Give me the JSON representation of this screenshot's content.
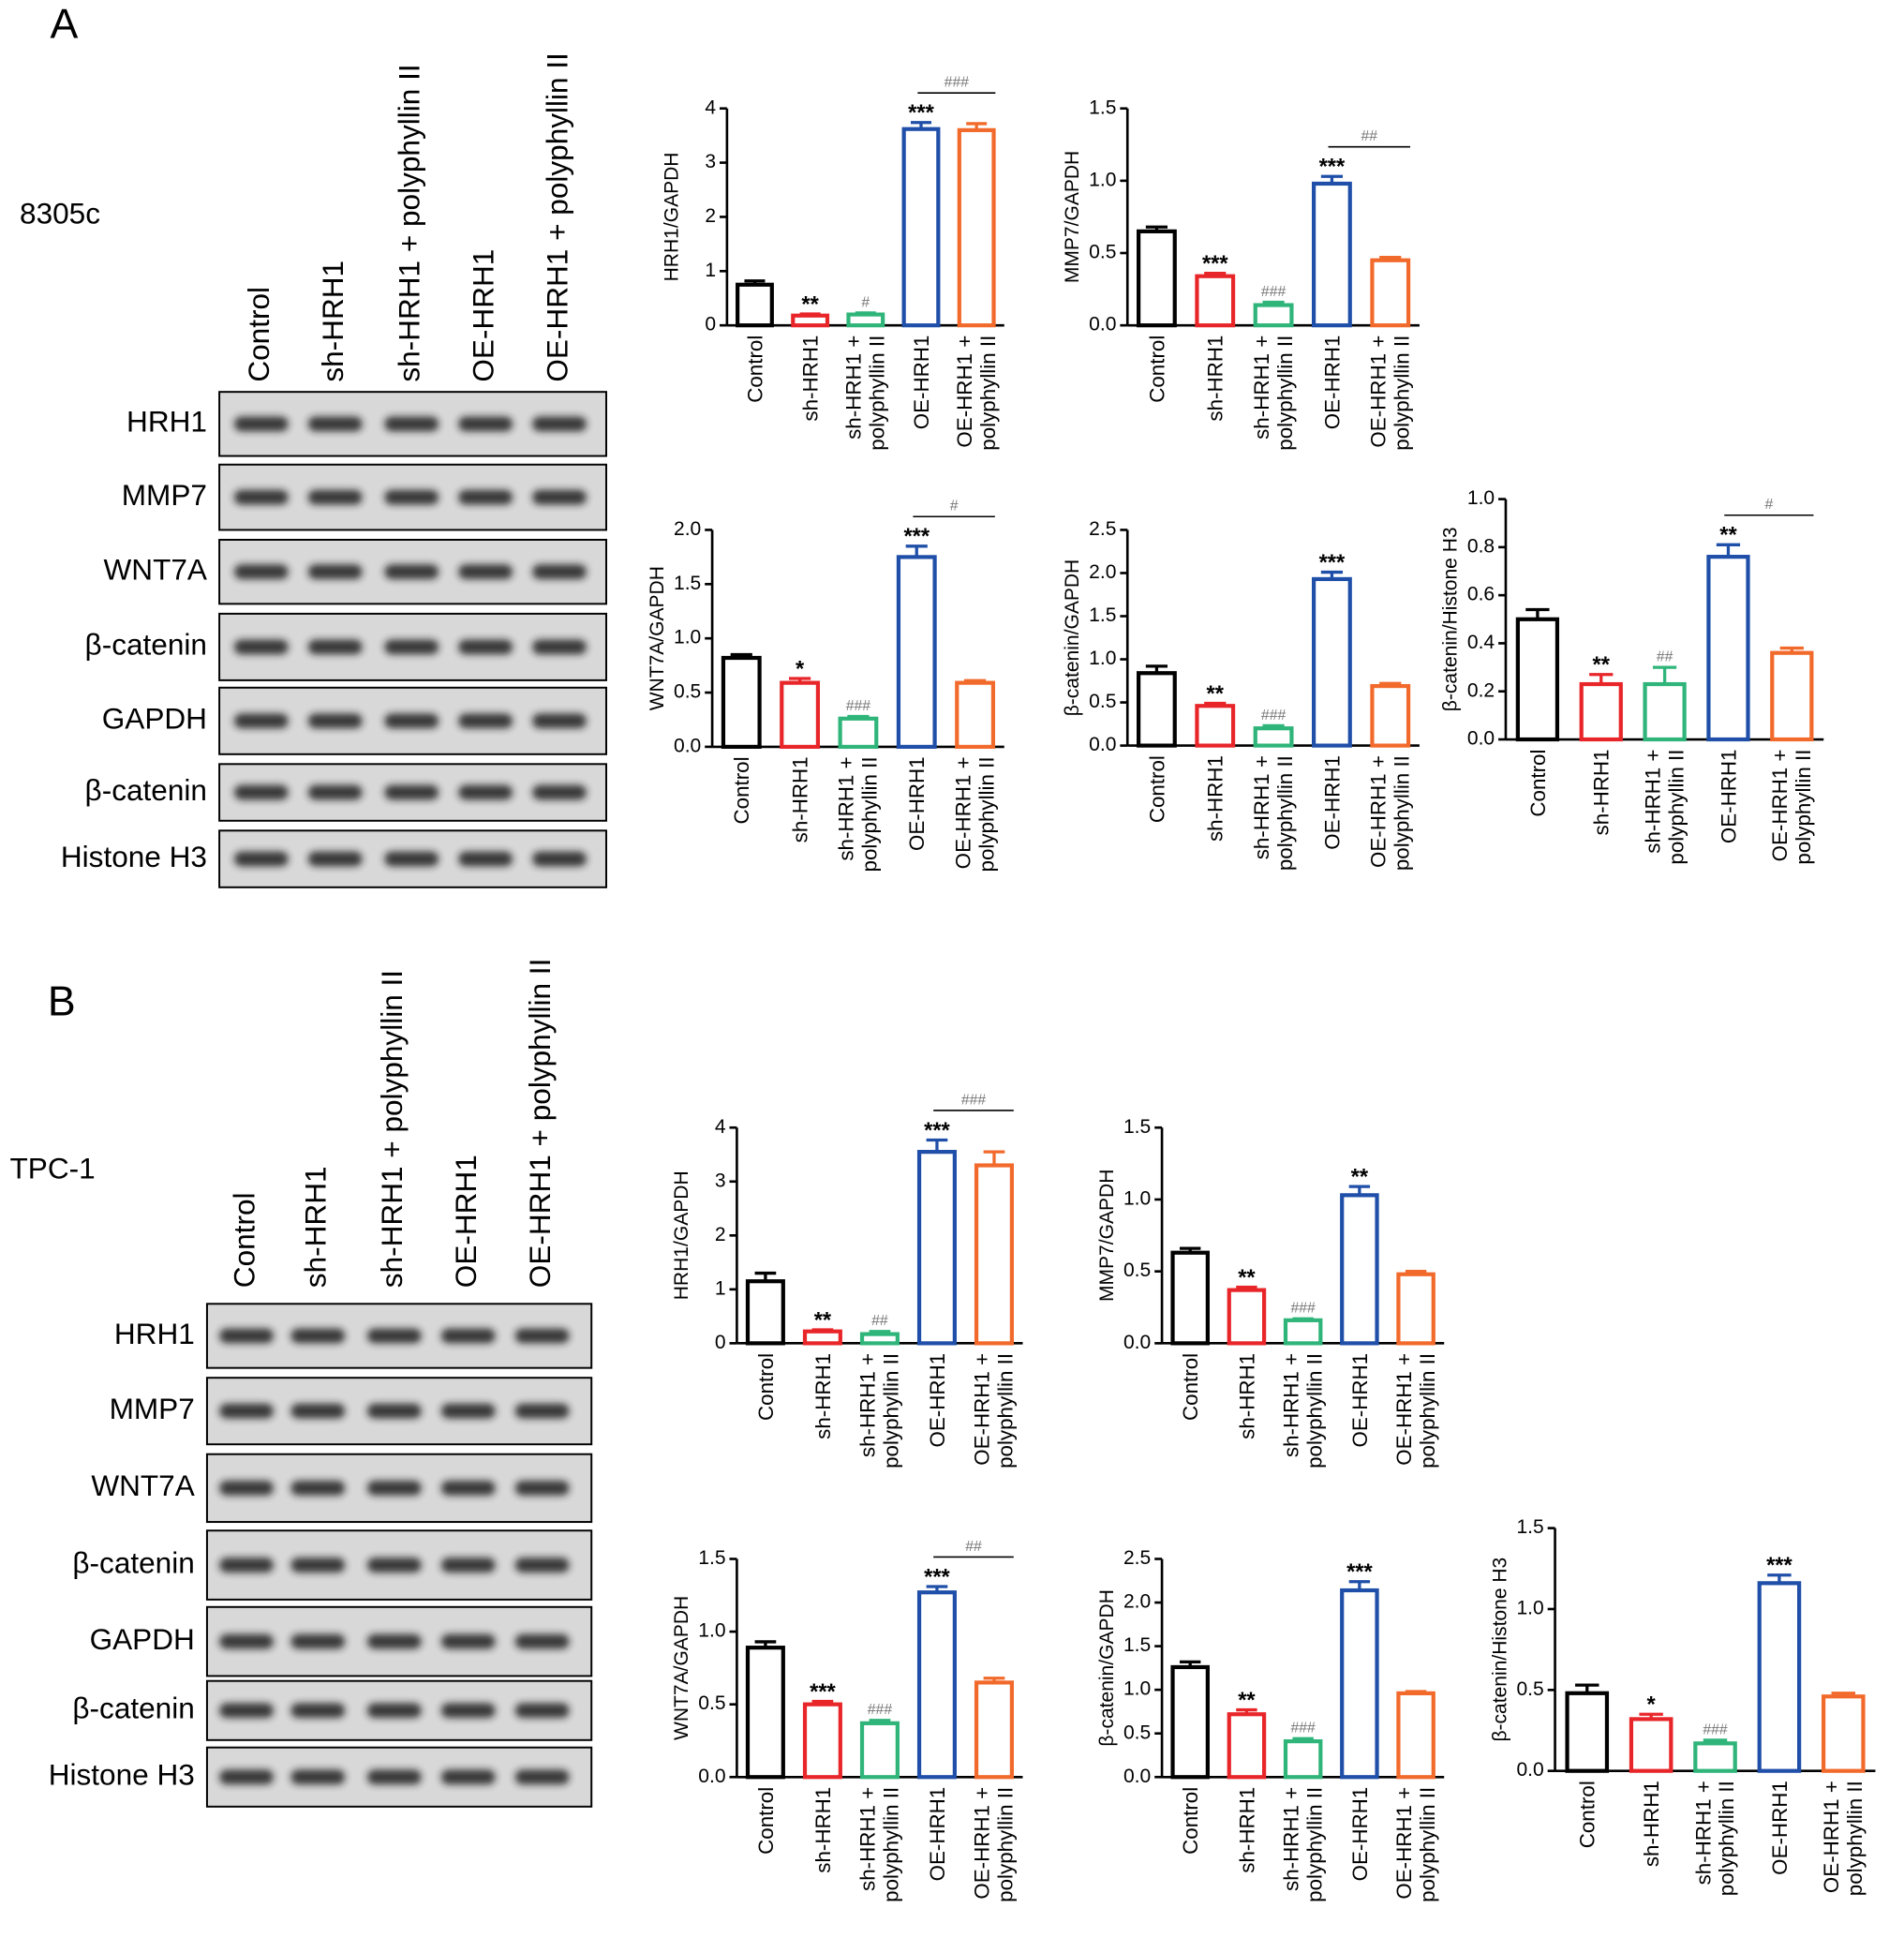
{
  "panels": [
    {
      "label": "A",
      "cell_line": "8305c",
      "lanes": [
        "Control",
        "sh-HRH1",
        "sh-HRH1 + polyphyllin II",
        "OE-HRH1",
        "OE-HRH1 + polyphyllin II"
      ],
      "proteins": [
        "HRH1",
        "MMP7",
        "WNT7A",
        "β-catenin",
        "GAPDH",
        "β-catenin",
        "Histone H3"
      ]
    },
    {
      "label": "B",
      "cell_line": "TPC-1",
      "lanes": [
        "Control",
        "sh-HRH1",
        "sh-HRH1 + polyphyllin II",
        "OE-HRH1",
        "OE-HRH1 + polyphyllin II"
      ],
      "proteins": [
        "HRH1",
        "MMP7",
        "WNT7A",
        "β-catenin",
        "GAPDH",
        "β-catenin",
        "Histone H3"
      ]
    }
  ],
  "chart_data": [
    {
      "type": "bar",
      "y_label": "HRH1/GAPDH",
      "categories": [
        "Control",
        "sh-HRH1",
        "sh-HRH1 +\npolyphyllin II",
        "OE-HRH1",
        "OE-HRH1 +\npolyphyllin II"
      ],
      "values": [
        0.75,
        0.18,
        0.2,
        3.62,
        3.6
      ],
      "errors": [
        0.07,
        0.03,
        0.03,
        0.12,
        0.12
      ],
      "colors": [
        "#000000",
        "#e8262a",
        "#2fb57a",
        "#1f4fa8",
        "#f26a2b"
      ],
      "annotations": [
        null,
        "**",
        "#",
        "***",
        null
      ],
      "bracket_label": "###",
      "ylim": [
        0,
        4
      ],
      "yticks": [
        0,
        1,
        2,
        3,
        4
      ]
    },
    {
      "type": "bar",
      "y_label": "MMP7/GAPDH",
      "categories": [
        "Control",
        "sh-HRH1",
        "sh-HRH1 +\npolyphyllin II",
        "OE-HRH1",
        "OE-HRH1 +\npolyphyllin II"
      ],
      "values": [
        0.65,
        0.34,
        0.14,
        0.98,
        0.45
      ],
      "errors": [
        0.03,
        0.02,
        0.02,
        0.05,
        0.02
      ],
      "colors": [
        "#000000",
        "#e8262a",
        "#2fb57a",
        "#1f4fa8",
        "#f26a2b"
      ],
      "annotations": [
        null,
        "***",
        "###",
        "***",
        null
      ],
      "bracket_label": "##",
      "ylim": [
        0,
        1.5
      ],
      "yticks": [
        {
          "value": 0,
          "label": "0.0"
        },
        0.5,
        {
          "value": 1,
          "label": "1.0"
        },
        1.5
      ]
    },
    {
      "type": "bar",
      "y_label": "WNT7A/GAPDH",
      "categories": [
        "Control",
        "sh-HRH1",
        "sh-HRH1 +\npolyphyllin II",
        "OE-HRH1",
        "OE-HRH1 +\npolyphyllin II"
      ],
      "values": [
        0.82,
        0.59,
        0.26,
        1.75,
        0.59
      ],
      "errors": [
        0.03,
        0.04,
        0.02,
        0.1,
        0.02
      ],
      "colors": [
        "#000000",
        "#e8262a",
        "#2fb57a",
        "#1f4fa8",
        "#f26a2b"
      ],
      "annotations": [
        null,
        "*",
        "###",
        "***",
        null
      ],
      "bracket_label": "#",
      "ylim": [
        0,
        2
      ],
      "yticks": [
        {
          "value": 0,
          "label": "0.0"
        },
        0.5,
        {
          "value": 1,
          "label": "1.0"
        },
        1.5,
        {
          "value": 2,
          "label": "2.0"
        }
      ]
    },
    {
      "type": "bar",
      "y_label": "β-catenin/GAPDH",
      "categories": [
        "Control",
        "sh-HRH1",
        "sh-HRH1 +\npolyphyllin II",
        "OE-HRH1",
        "OE-HRH1 +\npolyphyllin II"
      ],
      "values": [
        0.84,
        0.46,
        0.2,
        1.93,
        0.69
      ],
      "errors": [
        0.08,
        0.03,
        0.03,
        0.08,
        0.03
      ],
      "colors": [
        "#000000",
        "#e8262a",
        "#2fb57a",
        "#1f4fa8",
        "#f26a2b"
      ],
      "annotations": [
        null,
        "**",
        "###",
        "***",
        null
      ],
      "ylim": [
        0,
        2.5
      ],
      "yticks": [
        {
          "value": 0,
          "label": "0.0"
        },
        0.5,
        {
          "value": 1,
          "label": "1.0"
        },
        1.5,
        {
          "value": 2,
          "label": "2.0"
        },
        2.5
      ]
    },
    {
      "type": "bar",
      "y_label": "β-catenin/Histone H3",
      "categories": [
        "Control",
        "sh-HRH1",
        "sh-HRH1 +\npolyphyllin II",
        "OE-HRH1",
        "OE-HRH1 +\npolyphyllin II"
      ],
      "values": [
        0.5,
        0.23,
        0.23,
        0.76,
        0.36
      ],
      "errors": [
        0.04,
        0.04,
        0.07,
        0.05,
        0.02
      ],
      "colors": [
        "#000000",
        "#e8262a",
        "#2fb57a",
        "#1f4fa8",
        "#f26a2b"
      ],
      "annotations": [
        null,
        "**",
        "##",
        "**",
        null
      ],
      "bracket_label": "#",
      "ylim": [
        0,
        1
      ],
      "yticks": [
        {
          "value": 0,
          "label": "0.0"
        },
        0.2,
        0.4,
        0.6,
        0.8,
        {
          "value": 1,
          "label": "1.0"
        }
      ]
    },
    {
      "type": "bar",
      "y_label": "HRH1/GAPDH",
      "categories": [
        "Control",
        "sh-HRH1",
        "sh-HRH1 +\npolyphyllin II",
        "OE-HRH1",
        "OE-HRH1 +\npolyphyllin II"
      ],
      "values": [
        1.15,
        0.22,
        0.17,
        3.55,
        3.3
      ],
      "errors": [
        0.15,
        0.03,
        0.05,
        0.22,
        0.25
      ],
      "colors": [
        "#000000",
        "#e8262a",
        "#2fb57a",
        "#1f4fa8",
        "#f26a2b"
      ],
      "annotations": [
        null,
        "**",
        "##",
        "***",
        null
      ],
      "bracket_label": "###",
      "ylim": [
        0,
        4
      ],
      "yticks": [
        0,
        1,
        2,
        3,
        4
      ]
    },
    {
      "type": "bar",
      "y_label": "MMP7/GAPDH",
      "categories": [
        "Control",
        "sh-HRH1",
        "sh-HRH1 +\npolyphyllin II",
        "OE-HRH1",
        "OE-HRH1 +\npolyphyllin II"
      ],
      "values": [
        0.63,
        0.37,
        0.16,
        1.03,
        0.48
      ],
      "errors": [
        0.03,
        0.02,
        0.01,
        0.06,
        0.02
      ],
      "colors": [
        "#000000",
        "#e8262a",
        "#2fb57a",
        "#1f4fa8",
        "#f26a2b"
      ],
      "annotations": [
        null,
        "**",
        "###",
        "**",
        null
      ],
      "ylim": [
        0,
        1.5
      ],
      "yticks": [
        {
          "value": 0,
          "label": "0.0"
        },
        0.5,
        {
          "value": 1,
          "label": "1.0"
        },
        1.5
      ]
    },
    {
      "type": "bar",
      "y_label": "WNT7A/GAPDH",
      "categories": [
        "Control",
        "sh-HRH1",
        "sh-HRH1 +\npolyphyllin II",
        "OE-HRH1",
        "OE-HRH1 +\npolyphyllin II"
      ],
      "values": [
        0.89,
        0.5,
        0.37,
        1.27,
        0.65
      ],
      "errors": [
        0.04,
        0.02,
        0.02,
        0.04,
        0.03
      ],
      "colors": [
        "#000000",
        "#e8262a",
        "#2fb57a",
        "#1f4fa8",
        "#f26a2b"
      ],
      "annotations": [
        null,
        "***",
        "###",
        "***",
        null
      ],
      "bracket_label": "##",
      "ylim": [
        0,
        1.5
      ],
      "yticks": [
        {
          "value": 0,
          "label": "0.0"
        },
        0.5,
        {
          "value": 1,
          "label": "1.0"
        },
        1.5
      ]
    },
    {
      "type": "bar",
      "y_label": "β-catenin/GAPDH",
      "categories": [
        "Control",
        "sh-HRH1",
        "sh-HRH1 +\npolyphyllin II",
        "OE-HRH1",
        "OE-HRH1 +\npolyphyllin II"
      ],
      "values": [
        1.26,
        0.72,
        0.41,
        2.14,
        0.96
      ],
      "errors": [
        0.06,
        0.05,
        0.03,
        0.1,
        0.02
      ],
      "colors": [
        "#000000",
        "#e8262a",
        "#2fb57a",
        "#1f4fa8",
        "#f26a2b"
      ],
      "annotations": [
        null,
        "**",
        "###",
        "***",
        null
      ],
      "ylim": [
        0,
        2.5
      ],
      "yticks": [
        {
          "value": 0,
          "label": "0.0"
        },
        0.5,
        {
          "value": 1,
          "label": "1.0"
        },
        1.5,
        {
          "value": 2,
          "label": "2.0"
        },
        2.5
      ]
    },
    {
      "type": "bar",
      "y_label": "β-catenin/Histone H3",
      "categories": [
        "Control",
        "sh-HRH1",
        "sh-HRH1 +\npolyphyllin II",
        "OE-HRH1",
        "OE-HRH1 +\npolyphyllin II"
      ],
      "values": [
        0.48,
        0.32,
        0.17,
        1.16,
        0.46
      ],
      "errors": [
        0.05,
        0.03,
        0.02,
        0.05,
        0.02
      ],
      "colors": [
        "#000000",
        "#e8262a",
        "#2fb57a",
        "#1f4fa8",
        "#f26a2b"
      ],
      "annotations": [
        null,
        "*",
        "###",
        "***",
        null
      ],
      "ylim": [
        0,
        1.5
      ],
      "yticks": [
        {
          "value": 0,
          "label": "0.0"
        },
        0.5,
        {
          "value": 1,
          "label": "1.0"
        },
        1.5
      ]
    }
  ]
}
